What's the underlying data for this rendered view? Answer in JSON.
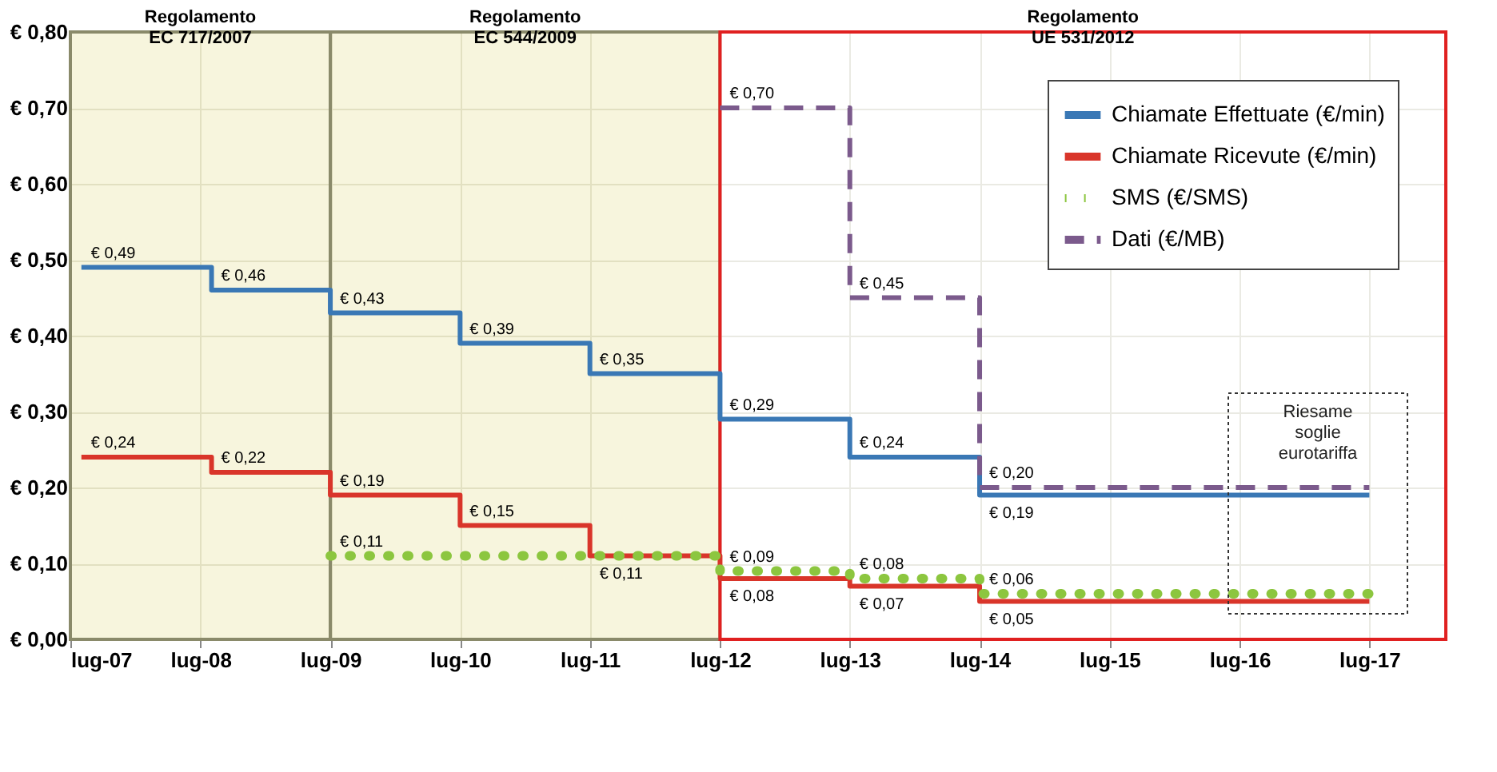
{
  "chart_data": {
    "type": "step",
    "x": [
      "2007-08",
      "2008-08",
      "2009-07",
      "2010-07",
      "2011-07",
      "2012-07",
      "2013-07",
      "2014-07",
      "2017-07"
    ],
    "series": [
      {
        "name": "Chiamate Effettuate (€/min)",
        "color": "#3a78b5",
        "line_style": "solid",
        "values": [
          0.49,
          0.46,
          0.43,
          0.39,
          0.35,
          0.29,
          0.24,
          0.19,
          0.19
        ],
        "value_labels": [
          "€ 0,49",
          "€ 0,46",
          "€ 0,43",
          "€ 0,39",
          "€ 0,35",
          "€ 0,29",
          "€ 0,24",
          "€ 0,19",
          null
        ]
      },
      {
        "name": "Chiamate Ricevute (€/min)",
        "color": "#d9352a",
        "line_style": "solid",
        "values": [
          0.24,
          0.22,
          0.19,
          0.15,
          0.11,
          0.08,
          0.07,
          0.05,
          0.05
        ],
        "value_labels": [
          "€ 0,24",
          "€ 0,22",
          "€ 0,19",
          "€ 0,15",
          "€ 0,11",
          "€ 0,08",
          "€ 0,07",
          "€ 0,05",
          null
        ]
      },
      {
        "name": "SMS (€/SMS)",
        "color": "#8cc63f",
        "line_style": "dotted",
        "values": [
          null,
          null,
          0.11,
          0.11,
          0.11,
          0.09,
          0.08,
          0.06,
          0.06
        ],
        "value_labels": [
          null,
          null,
          "€ 0,11",
          null,
          null,
          "€ 0,09",
          "€ 0,08",
          "€ 0,06",
          null
        ]
      },
      {
        "name": "Dati (€/MB)",
        "color": "#7b5a8c",
        "line_style": "dashed",
        "values": [
          null,
          null,
          null,
          null,
          null,
          0.7,
          0.45,
          0.2,
          0.2
        ],
        "value_labels": [
          null,
          null,
          null,
          null,
          null,
          "€ 0,70",
          "€ 0,45",
          "€ 0,20",
          null
        ]
      }
    ],
    "xlim": [
      "2007-07",
      "2018-02"
    ],
    "xticks": [
      {
        "value": "2007-07",
        "label": "lug-07"
      },
      {
        "value": "2008-07",
        "label": "lug-08"
      },
      {
        "value": "2009-07",
        "label": "lug-09"
      },
      {
        "value": "2010-07",
        "label": "lug-10"
      },
      {
        "value": "2011-07",
        "label": "lug-11"
      },
      {
        "value": "2012-07",
        "label": "lug-12"
      },
      {
        "value": "2013-07",
        "label": "lug-13"
      },
      {
        "value": "2014-07",
        "label": "lug-14"
      },
      {
        "value": "2015-07",
        "label": "lug-15"
      },
      {
        "value": "2016-07",
        "label": "lug-16"
      },
      {
        "value": "2017-07",
        "label": "lug-17"
      }
    ],
    "ylim": [
      0,
      0.8
    ],
    "yticks": [
      {
        "value": 0,
        "label": "€ 0,00"
      },
      {
        "value": 0.1,
        "label": "€ 0,10"
      },
      {
        "value": 0.2,
        "label": "€ 0,20"
      },
      {
        "value": 0.3,
        "label": "€ 0,30"
      },
      {
        "value": 0.4,
        "label": "€ 0,40"
      },
      {
        "value": 0.5,
        "label": "€ 0,50"
      },
      {
        "value": 0.6,
        "label": "€ 0,60"
      },
      {
        "value": 0.7,
        "label": "€ 0,70"
      },
      {
        "value": 0.8,
        "label": "€ 0,80"
      }
    ],
    "bands": [
      {
        "axis": "x",
        "from": "2007-07",
        "to": "2009-07",
        "label": "Regolamento\nEC 717/2007",
        "color": "#f3f1cf"
      },
      {
        "axis": "x",
        "from": "2009-07",
        "to": "2012-07",
        "label": "Regolamento\nEC 544/2009",
        "color": "#f3f1cf"
      },
      {
        "axis": "x",
        "from": "2012-07",
        "to": "2018-02",
        "label": "Regolamento\nUE 531/2012",
        "color": "#ffffff"
      }
    ],
    "annotations": [
      "Riesame\nsoglie\neurotariffa"
    ],
    "grid": true,
    "legend": "top right"
  }
}
